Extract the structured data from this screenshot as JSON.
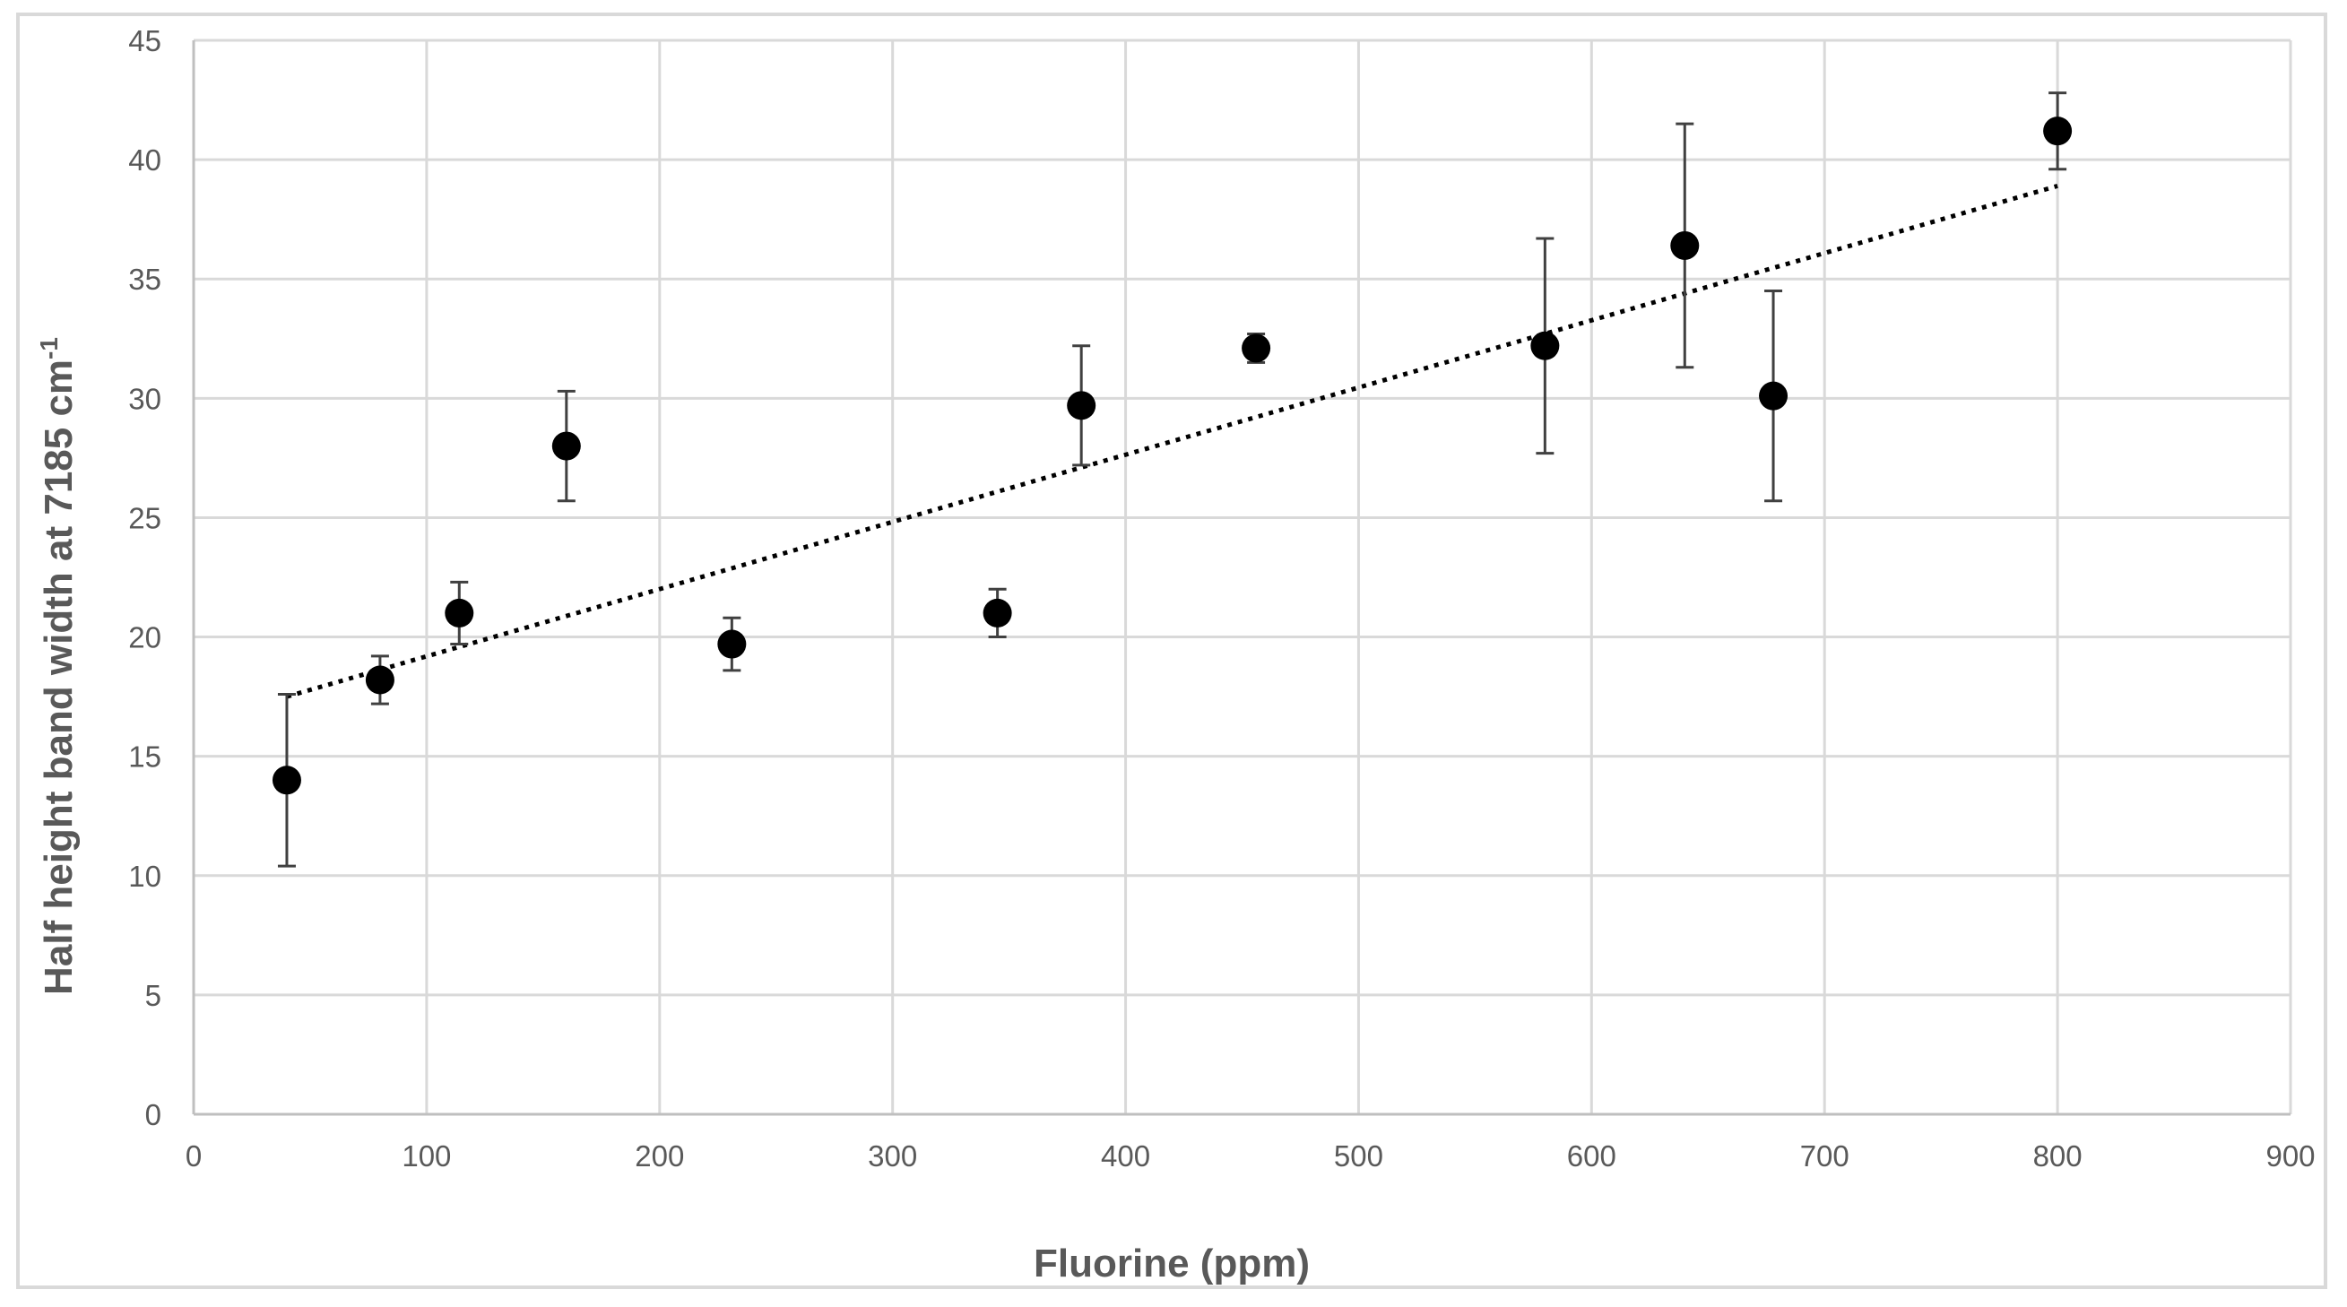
{
  "chart_data": {
    "type": "scatter",
    "title": "",
    "xlabel": "Fluorine (ppm)",
    "ylabel": "Half height band width at 7185 cm",
    "ylabel_superscript": "-1",
    "xlim": [
      0,
      900
    ],
    "ylim": [
      0,
      45
    ],
    "x_ticks": [
      0,
      100,
      200,
      300,
      400,
      500,
      600,
      700,
      800,
      900
    ],
    "y_ticks": [
      0,
      5,
      10,
      15,
      20,
      25,
      30,
      35,
      40,
      45
    ],
    "grid": true,
    "marker_color": "#000000",
    "grid_color": "#d9d9d9",
    "points": [
      {
        "x": 40,
        "y": 14.0,
        "err_low": 3.6,
        "err_high": 3.6
      },
      {
        "x": 80,
        "y": 18.2,
        "err_low": 1.0,
        "err_high": 1.0
      },
      {
        "x": 114,
        "y": 21.0,
        "err_low": 1.3,
        "err_high": 1.3
      },
      {
        "x": 160,
        "y": 28.0,
        "err_low": 2.3,
        "err_high": 2.3
      },
      {
        "x": 231,
        "y": 19.7,
        "err_low": 1.1,
        "err_high": 1.1
      },
      {
        "x": 345,
        "y": 21.0,
        "err_low": 1.0,
        "err_high": 1.0
      },
      {
        "x": 381,
        "y": 29.7,
        "err_low": 2.5,
        "err_high": 2.5
      },
      {
        "x": 456,
        "y": 32.1,
        "err_low": 0.6,
        "err_high": 0.6
      },
      {
        "x": 580,
        "y": 32.2,
        "err_low": 4.5,
        "err_high": 4.5
      },
      {
        "x": 640,
        "y": 36.4,
        "err_low": 5.1,
        "err_high": 5.1
      },
      {
        "x": 678,
        "y": 30.1,
        "err_low": 4.4,
        "err_high": 4.4
      },
      {
        "x": 800,
        "y": 41.2,
        "err_low": 1.6,
        "err_high": 1.6
      }
    ],
    "trendline": {
      "type": "linear",
      "style": "dotted",
      "x": [
        40,
        800
      ],
      "y": [
        17.5,
        38.9
      ]
    }
  }
}
